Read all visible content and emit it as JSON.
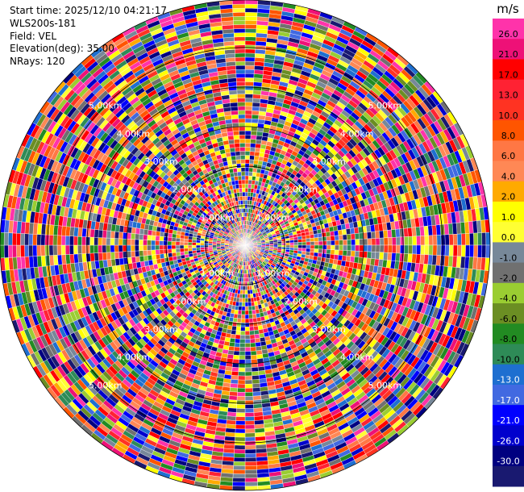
{
  "info": {
    "start_time": "Start time: 2025/12/10 04:21:17",
    "instrument": "WLS200s-181",
    "field": "Field: VEL",
    "elevation": "Elevation(deg): 35.00",
    "nrays": "NRays: 120"
  },
  "chart_data": {
    "type": "heatmap",
    "projection": "polar-ppi",
    "field": "VEL",
    "units": "m/s",
    "nrays": 120,
    "range_rings_km": [
      1,
      2,
      3,
      4,
      5
    ],
    "range_ring_labels": [
      "1.00km",
      "2.00km",
      "3.00km",
      "4.00km",
      "5.00km"
    ],
    "colorbar": {
      "label": "m/s",
      "ticks": [
        "26.0",
        "21.0",
        "17.0",
        "13.0",
        "10.0",
        "8.0",
        "6.0",
        "4.0",
        "2.0",
        "1.0",
        "0.0",
        "-1.0",
        "-2.0",
        "-4.0",
        "-6.0",
        "-8.0",
        "-10.0",
        "-13.0",
        "-17.0",
        "-21.0",
        "-26.0",
        "-30.0"
      ],
      "colors": [
        "#ff33aa",
        "#ee1177",
        "#ff0000",
        "#ff2233",
        "#ff3322",
        "#ff5500",
        "#ff7744",
        "#ff8855",
        "#ffaa00",
        "#ffff00",
        "#ffff33",
        "#778899",
        "#707070",
        "#9acd32",
        "#6b8e23",
        "#228b22",
        "#2e8b57",
        "#1e6fd0",
        "#4169e1",
        "#0000ff",
        "#0000cd",
        "#000080",
        "#191970"
      ]
    }
  }
}
